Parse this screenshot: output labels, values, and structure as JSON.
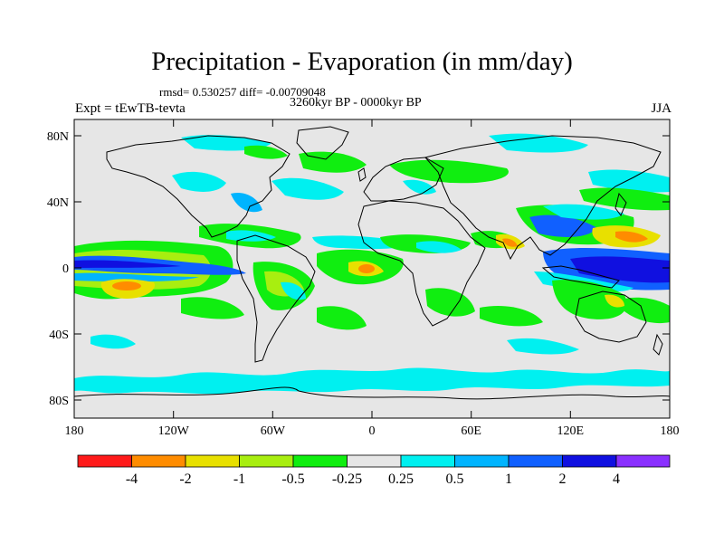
{
  "title": "Precipitation - Evaporation (in mm/day)",
  "stats_line": "rmsd= 0.530257 diff= -0.00709048",
  "period": "3260kyr BP - 0000kyr BP",
  "experiment": "Expt = tEwTB-tevta",
  "season": "JJA",
  "axes": {
    "lat_labels": [
      "80N",
      "40N",
      "0",
      "40S",
      "80S"
    ],
    "lon_labels": [
      "180",
      "120W",
      "60W",
      "0",
      "60E",
      "120E",
      "180"
    ]
  },
  "colorbar": {
    "labels": [
      "-4",
      "-2",
      "-1",
      "-0.5",
      "-0.25",
      "0.25",
      "0.5",
      "1",
      "2",
      "4"
    ],
    "colors": [
      "#ff1a1a",
      "#ff8c00",
      "#e8e000",
      "#a8ee10",
      "#10ee10",
      "#e6e6e6",
      "#00f0f0",
      "#00b4ff",
      "#1060ff",
      "#1010e0",
      "#8a30ff"
    ]
  },
  "palette": {
    "ocean_gray": "#e6e6e6",
    "coast": "#000000"
  }
}
